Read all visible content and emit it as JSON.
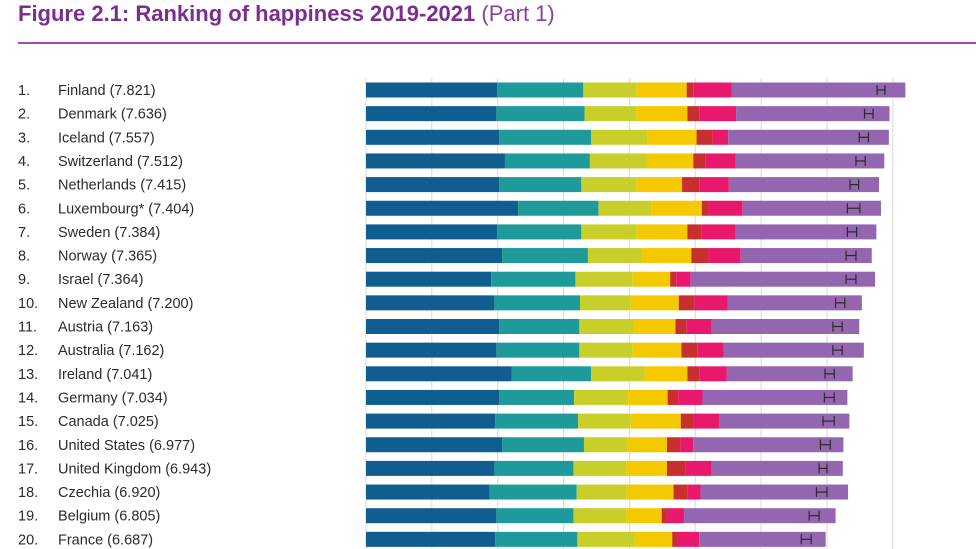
{
  "title": {
    "main": "Figure 2.1: Ranking of happiness 2019-2021",
    "part": "(Part 1)"
  },
  "colors": {
    "title": "#7b2e8f",
    "rule": "#9b4fa8",
    "gridline": "#d8d8d8",
    "error_bar": "#2b2b2b"
  },
  "chart_data": {
    "type": "bar",
    "orientation": "horizontal",
    "stacked": true,
    "title": "Figure 2.1: Ranking of happiness 2019-2021 (Part 1)",
    "xlim": [
      0,
      8.2
    ],
    "gridlines": [
      0,
      1,
      2,
      3,
      4,
      5,
      6,
      7,
      8
    ],
    "grid": true,
    "categories": [
      {
        "rank": "1.",
        "label": "Finland (7.821)",
        "score": 7.821
      },
      {
        "rank": "2.",
        "label": "Denmark (7.636)",
        "score": 7.636
      },
      {
        "rank": "3.",
        "label": "Iceland (7.557)",
        "score": 7.557
      },
      {
        "rank": "4.",
        "label": "Switzerland (7.512)",
        "score": 7.512
      },
      {
        "rank": "5.",
        "label": "Netherlands (7.415)",
        "score": 7.415
      },
      {
        "rank": "6.",
        "label": "Luxembourg* (7.404)",
        "score": 7.404
      },
      {
        "rank": "7.",
        "label": "Sweden (7.384)",
        "score": 7.384
      },
      {
        "rank": "8.",
        "label": "Norway (7.365)",
        "score": 7.365
      },
      {
        "rank": "9.",
        "label": "Israel (7.364)",
        "score": 7.364
      },
      {
        "rank": "10.",
        "label": "New Zealand (7.200)",
        "score": 7.2
      },
      {
        "rank": "11.",
        "label": "Austria (7.163)",
        "score": 7.163
      },
      {
        "rank": "12.",
        "label": "Australia (7.162)",
        "score": 7.162
      },
      {
        "rank": "13.",
        "label": "Ireland (7.041)",
        "score": 7.041
      },
      {
        "rank": "14.",
        "label": "Germany (7.034)",
        "score": 7.034
      },
      {
        "rank": "15.",
        "label": "Canada (7.025)",
        "score": 7.025
      },
      {
        "rank": "16.",
        "label": "United States (6.977)",
        "score": 6.977
      },
      {
        "rank": "17.",
        "label": "United Kingdom (6.943)",
        "score": 6.943
      },
      {
        "rank": "18.",
        "label": "Czechia (6.920)",
        "score": 6.92
      },
      {
        "rank": "19.",
        "label": "Belgium (6.805)",
        "score": 6.805
      },
      {
        "rank": "20.",
        "label": "France (6.687)",
        "score": 6.687
      }
    ],
    "series": [
      {
        "name": "segment-1",
        "color": "#0f5e8f",
        "values": [
          1.99,
          1.98,
          2.02,
          2.11,
          2.02,
          2.31,
          1.99,
          2.07,
          1.9,
          1.95,
          2.02,
          1.98,
          2.21,
          2.02,
          1.96,
          2.07,
          1.95,
          1.88,
          1.98,
          1.96
        ]
      },
      {
        "name": "segment-2",
        "color": "#1f9a9a",
        "values": [
          1.31,
          1.34,
          1.4,
          1.29,
          1.25,
          1.22,
          1.28,
          1.3,
          1.28,
          1.3,
          1.22,
          1.26,
          1.21,
          1.14,
          1.26,
          1.24,
          1.2,
          1.32,
          1.17,
          1.25
        ]
      },
      {
        "name": "segment-3",
        "color": "#c9cf2a",
        "values": [
          0.81,
          0.79,
          0.86,
          0.86,
          0.84,
          0.81,
          0.84,
          0.82,
          0.87,
          0.77,
          0.83,
          0.81,
          0.81,
          0.82,
          0.8,
          0.66,
          0.8,
          0.76,
          0.8,
          0.87
        ]
      },
      {
        "name": "segment-4",
        "color": "#f5c900",
        "values": [
          0.76,
          0.77,
          0.74,
          0.71,
          0.69,
          0.76,
          0.77,
          0.75,
          0.57,
          0.73,
          0.63,
          0.74,
          0.65,
          0.6,
          0.76,
          0.6,
          0.62,
          0.71,
          0.54,
          0.57
        ]
      },
      {
        "name": "segment-5",
        "color": "#c7302f",
        "values": [
          0.1,
          0.18,
          0.24,
          0.18,
          0.26,
          0.1,
          0.22,
          0.26,
          0.09,
          0.24,
          0.17,
          0.24,
          0.18,
          0.16,
          0.2,
          0.2,
          0.28,
          0.21,
          0.08,
          0.08
        ]
      },
      {
        "name": "segment-6",
        "color": "#e8196c",
        "values": [
          0.58,
          0.56,
          0.24,
          0.46,
          0.45,
          0.52,
          0.51,
          0.49,
          0.22,
          0.5,
          0.38,
          0.4,
          0.42,
          0.37,
          0.38,
          0.2,
          0.4,
          0.2,
          0.26,
          0.33
        ]
      },
      {
        "name": "segment-7",
        "color": "#9466b0",
        "values": [
          2.64,
          2.33,
          2.44,
          2.26,
          2.28,
          2.1,
          2.14,
          1.99,
          2.8,
          2.04,
          2.24,
          2.13,
          1.91,
          2.2,
          1.98,
          2.28,
          1.99,
          2.24,
          2.3,
          1.92
        ]
      }
    ],
    "error_bars": [
      {
        "low": 7.76,
        "high": 7.88
      },
      {
        "low": 7.57,
        "high": 7.7
      },
      {
        "low": 7.49,
        "high": 7.63
      },
      {
        "low": 7.44,
        "high": 7.58
      },
      {
        "low": 7.35,
        "high": 7.48
      },
      {
        "low": 7.31,
        "high": 7.5
      },
      {
        "low": 7.31,
        "high": 7.45
      },
      {
        "low": 7.29,
        "high": 7.44
      },
      {
        "low": 7.29,
        "high": 7.44
      },
      {
        "low": 7.13,
        "high": 7.27
      },
      {
        "low": 7.09,
        "high": 7.23
      },
      {
        "low": 7.09,
        "high": 7.23
      },
      {
        "low": 6.97,
        "high": 7.11
      },
      {
        "low": 6.96,
        "high": 7.11
      },
      {
        "low": 6.94,
        "high": 7.11
      },
      {
        "low": 6.9,
        "high": 7.05
      },
      {
        "low": 6.88,
        "high": 7.0
      },
      {
        "low": 6.84,
        "high": 7.0
      },
      {
        "low": 6.73,
        "high": 6.88
      },
      {
        "low": 6.61,
        "high": 6.76
      }
    ]
  }
}
